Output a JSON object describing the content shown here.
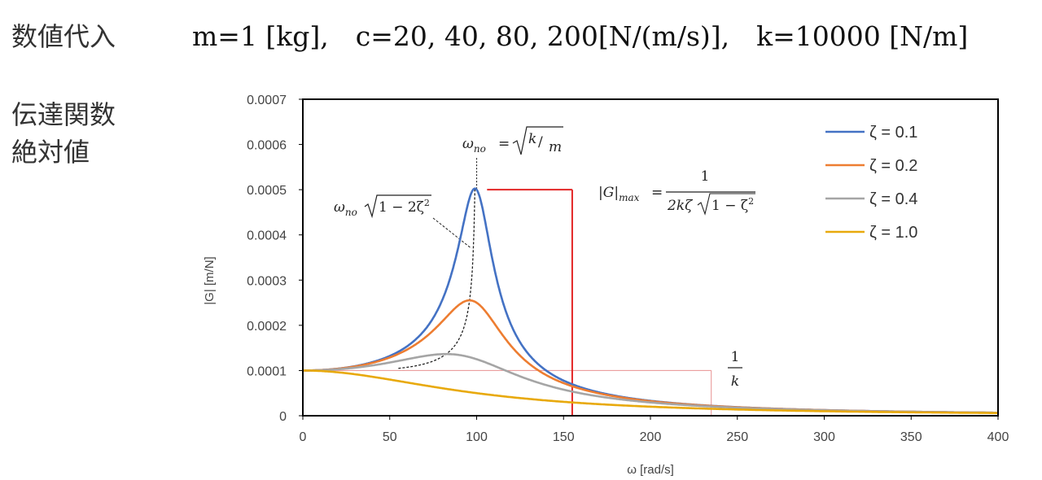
{
  "heading": {
    "substitution": "数値代入",
    "params": "m=1 [kg],　c=20, 40, 80, 200[N/(m/s)],　k=10000 [N/m]",
    "tf_line1": "伝達関数",
    "tf_line2": "絶対値"
  },
  "annotations": {
    "wno_eq": "ωno = √(k/m)",
    "peak_eq": "ωno√(1 − 2ζ²)",
    "gmax_eq": "|G|max = 1 / (2kζ√(1 − ζ²))",
    "inv_k": "1/k"
  },
  "colors": {
    "z01": "#4472C4",
    "z02": "#ED7D31",
    "z04": "#A5A5A5",
    "z10": "#E8A90C",
    "red": "#E32626",
    "pink": "#E89090"
  },
  "chart_data": {
    "type": "line",
    "xlabel": "ω [rad/s]",
    "ylabel": "|G|  [m/N]",
    "xlim": [
      0,
      400
    ],
    "ylim": [
      0,
      0.0007
    ],
    "x_ticks": [
      "0",
      "50",
      "100",
      "150",
      "200",
      "250",
      "300",
      "350",
      "400"
    ],
    "y_ticks": [
      "0",
      "0.0001",
      "0.0002",
      "0.0003",
      "0.0004",
      "0.0005",
      "0.0006",
      "0.0007"
    ],
    "grid": false,
    "legend_position": "top-right",
    "params": {
      "m": 1,
      "k": 10000,
      "c": [
        20,
        40,
        80,
        200
      ]
    },
    "series": [
      {
        "name": "ζ = 0.1",
        "zeta": 0.1,
        "color": "#4472C4",
        "peak": [
          99,
          0.000503
        ]
      },
      {
        "name": "ζ = 0.2",
        "zeta": 0.2,
        "color": "#ED7D31",
        "peak": [
          96,
          0.000255
        ]
      },
      {
        "name": "ζ = 0.4",
        "zeta": 0.4,
        "color": "#A5A5A5",
        "peak": [
          82,
          0.000136
        ]
      },
      {
        "name": "ζ = 1.0",
        "zeta": 1.0,
        "color": "#E8A90C",
        "peak": [
          0,
          0.0001
        ]
      }
    ],
    "peak_locus": {
      "omega_min": 55,
      "omega_max": 100
    },
    "guides": {
      "gmax_line_x": 155,
      "gmax_line_y": 0.0005,
      "inv_k_value": 0.0001,
      "inv_k_line_x": 235
    }
  }
}
